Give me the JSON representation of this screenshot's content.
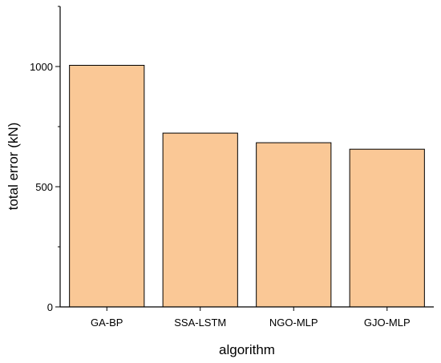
{
  "chart_data": {
    "type": "bar",
    "title": "",
    "xlabel": "algorithm",
    "ylabel": "total error (kN)",
    "categories": [
      "GA-BP",
      "SSA-LSTM",
      "NGO-MLP",
      "GJO-MLP"
    ],
    "values": [
      1005,
      723,
      683,
      656
    ],
    "ylim": [
      0,
      1250
    ],
    "yticks": [
      0,
      500,
      1000
    ],
    "grid": false,
    "legend": "none",
    "bar_color": "#FAC896",
    "bar_edge_color": "#000000"
  }
}
